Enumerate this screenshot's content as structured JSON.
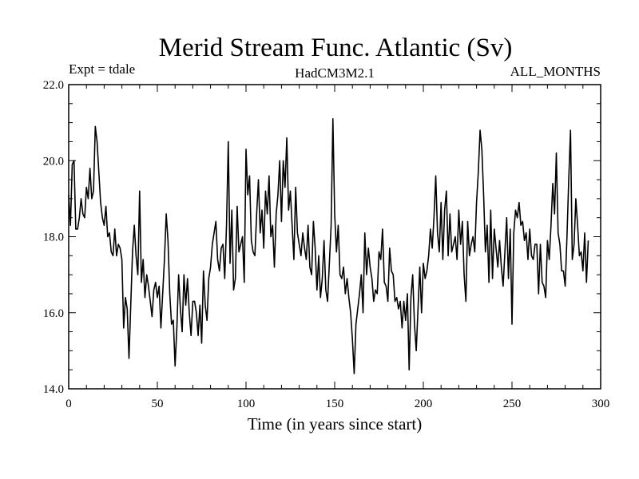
{
  "chart_data": {
    "type": "line",
    "title": "Merid Stream Func. Atlantic (Sv)",
    "subtitle_left": "Expt = tdale",
    "subtitle_center": "HadCM3M2.1",
    "subtitle_right": "ALL_MONTHS",
    "xlabel": "Time (in years since start)",
    "ylabel": "",
    "xlim": [
      0,
      300
    ],
    "ylim": [
      14.0,
      22.0
    ],
    "x_ticks": [
      0,
      50,
      100,
      150,
      200,
      250,
      300
    ],
    "x_tick_labels": [
      "0",
      "50",
      "100",
      "150",
      "200",
      "250",
      "300"
    ],
    "y_ticks": [
      14.0,
      16.0,
      18.0,
      20.0,
      22.0
    ],
    "y_tick_labels": [
      "14.0",
      "16.0",
      "18.0",
      "20.0",
      "22.0"
    ],
    "grid": false,
    "series": [
      {
        "name": "Merid Stream Func. Atlantic",
        "x_start": 0,
        "x_step": 1,
        "values": [
          19.1,
          18.3,
          19.9,
          20.0,
          18.2,
          18.2,
          18.5,
          19.0,
          18.6,
          18.5,
          19.3,
          19.0,
          19.8,
          19.0,
          19.2,
          20.9,
          20.5,
          19.7,
          18.9,
          18.5,
          18.3,
          18.8,
          18.0,
          18.1,
          17.6,
          17.5,
          18.2,
          17.5,
          17.8,
          17.7,
          17.4,
          15.6,
          16.4,
          16.1,
          14.8,
          16.2,
          17.6,
          18.3,
          17.5,
          17.0,
          19.2,
          16.8,
          17.4,
          16.4,
          17.0,
          16.7,
          16.3,
          15.9,
          16.6,
          16.8,
          16.4,
          16.7,
          15.6,
          16.5,
          17.4,
          18.6,
          17.9,
          16.5,
          15.7,
          15.8,
          14.6,
          15.6,
          17.0,
          16.1,
          15.5,
          17.0,
          16.2,
          16.9,
          16.0,
          15.4,
          16.3,
          16.3,
          16.0,
          15.4,
          16.2,
          15.2,
          17.1,
          16.2,
          15.8,
          16.9,
          17.2,
          17.8,
          18.1,
          18.4,
          17.4,
          17.1,
          17.7,
          17.8,
          16.9,
          18.3,
          20.5,
          17.3,
          18.7,
          16.6,
          16.9,
          18.8,
          17.6,
          17.8,
          18.0,
          16.8,
          20.3,
          19.1,
          19.6,
          17.9,
          17.6,
          17.5,
          18.6,
          19.5,
          18.1,
          18.7,
          17.7,
          19.2,
          18.6,
          19.6,
          18.0,
          18.3,
          17.2,
          18.6,
          19.1,
          20.0,
          18.4,
          20.0,
          19.3,
          20.6,
          18.7,
          19.2,
          18.3,
          17.4,
          19.3,
          18.1,
          17.8,
          17.5,
          18.1,
          17.7,
          17.4,
          18.3,
          17.2,
          17.0,
          18.4,
          17.7,
          16.6,
          17.5,
          16.4,
          16.9,
          17.9,
          16.6,
          16.3,
          17.3,
          18.3,
          21.1,
          18.6,
          17.6,
          18.3,
          17.0,
          16.9,
          17.2,
          16.5,
          16.9,
          16.4,
          16.0,
          15.3,
          14.4,
          15.7,
          16.1,
          16.5,
          17.0,
          16.0,
          18.1,
          17.0,
          17.7,
          17.2,
          16.9,
          16.3,
          16.6,
          16.5,
          17.6,
          17.4,
          18.2,
          16.8,
          16.7,
          16.3,
          17.7,
          17.1,
          17.0,
          16.3,
          16.4,
          16.1,
          16.3,
          15.6,
          16.3,
          15.8,
          16.5,
          14.5,
          16.4,
          17.0,
          15.7,
          15.0,
          16.1,
          17.2,
          16.0,
          17.3,
          16.9,
          17.1,
          17.5,
          18.2,
          17.7,
          18.5,
          19.6,
          18.1,
          17.6,
          18.9,
          17.4,
          18.7,
          19.2,
          17.5,
          18.6,
          17.6,
          17.8,
          18.0,
          17.4,
          18.7,
          17.8,
          18.4,
          17.0,
          16.3,
          18.4,
          17.5,
          17.8,
          18.0,
          17.6,
          18.9,
          19.7,
          20.8,
          20.3,
          19.1,
          17.6,
          18.3,
          16.8,
          18.7,
          16.9,
          18.2,
          17.7,
          17.2,
          17.9,
          17.2,
          16.7,
          17.6,
          18.5,
          16.9,
          18.2,
          15.7,
          18.1,
          18.7,
          18.5,
          18.9,
          18.3,
          18.4,
          17.9,
          18.1,
          17.4,
          18.2,
          17.5,
          17.4,
          17.8,
          17.8,
          16.5,
          17.8,
          16.8,
          16.7,
          16.4,
          17.9,
          17.4,
          18.3,
          19.4,
          18.6,
          20.2,
          18.1,
          17.8,
          17.1,
          17.1,
          16.7,
          18.0,
          19.5,
          20.8,
          17.4,
          17.8,
          19.0,
          18.3,
          17.5,
          17.6,
          17.1,
          18.1,
          16.8,
          17.9
        ]
      }
    ]
  }
}
